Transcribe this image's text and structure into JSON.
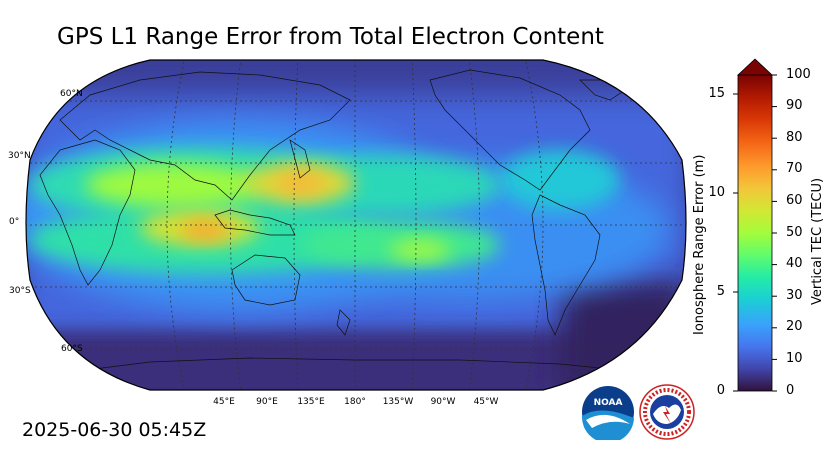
{
  "title": "GPS L1 Range Error from Total Electron Content",
  "timestamp": "2025-06-30 05:45Z",
  "map": {
    "projection": "robinson",
    "central_longitude": 180,
    "lat_labels": [
      "60°N",
      "30°N",
      "0°",
      "30°S",
      "60°S"
    ],
    "lon_labels": [
      "45°E",
      "90°E",
      "135°E",
      "180°",
      "135°W",
      "90°W",
      "45°W"
    ],
    "gridlines": "dotted"
  },
  "colorbar": {
    "tec_label": "Vertical TEC (TECU)",
    "tec_ticks": [
      "0",
      "10",
      "20",
      "30",
      "40",
      "50",
      "60",
      "70",
      "80",
      "90",
      "100"
    ],
    "range_label": "Ionosphere Range Error (m)",
    "range_ticks": [
      "0",
      "5",
      "10",
      "15"
    ],
    "extend": "max",
    "colormap": [
      "#30123b",
      "#4145ab",
      "#4675ed",
      "#39a2fc",
      "#1bcfd4",
      "#24eca6",
      "#61fc6c",
      "#a4fc3b",
      "#d1e834",
      "#f3c63a",
      "#fe9b2d",
      "#f36315",
      "#d93806",
      "#b11901",
      "#7a0402"
    ]
  },
  "logos": {
    "noaa_text": "NOAA",
    "nws_text": "NATIONAL WEATHER SERVICE"
  }
}
